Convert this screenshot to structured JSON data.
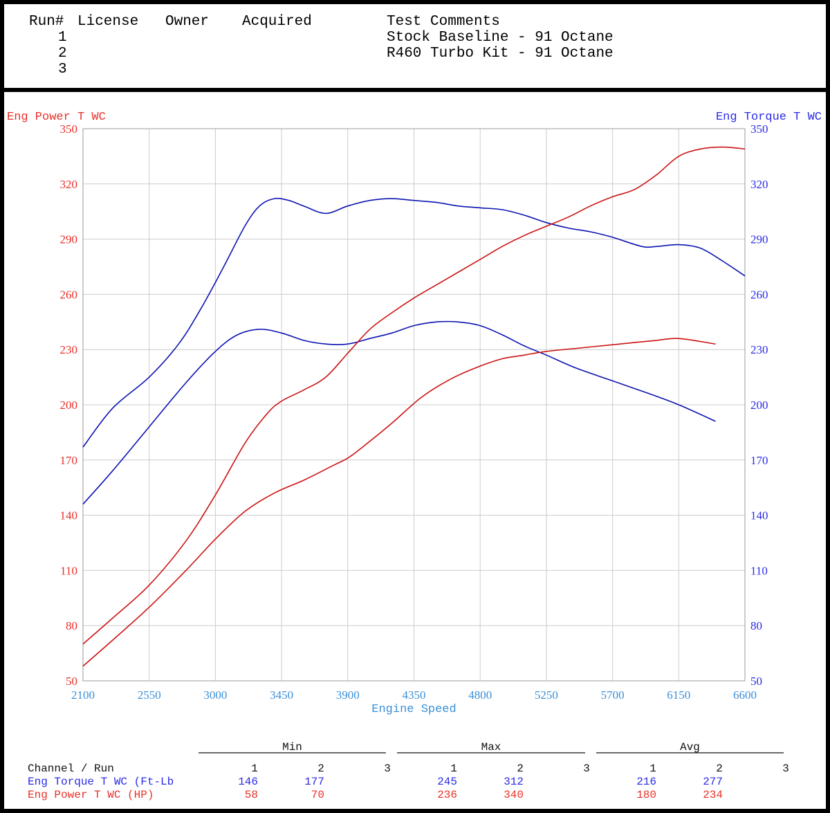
{
  "header": {
    "columns": {
      "run": "Run#",
      "license": "License",
      "owner": "Owner",
      "acquired": "Acquired",
      "comments": "Test Comments"
    },
    "runs": [
      {
        "num": "1",
        "comment": "Stock Baseline - 91 Octane"
      },
      {
        "num": "2",
        "comment": "R460 Turbo Kit - 91 Octane"
      },
      {
        "num": "3",
        "comment": ""
      }
    ]
  },
  "colors": {
    "power": "#e8302a",
    "torque": "#2a2ae8",
    "power_line": "#cc1111",
    "torque_line": "#0a12b0",
    "xaxis": "#3a8fd8",
    "grid": "#cccccc"
  },
  "chart_data": {
    "type": "line",
    "xlabel": "Engine Speed",
    "ylabel_left": "Eng Power T WC",
    "ylabel_right": "Eng Torque T WC",
    "xlim": [
      2100,
      6600
    ],
    "ylim": [
      50,
      350
    ],
    "x_ticks": [
      2100,
      2550,
      3000,
      3450,
      3900,
      4350,
      4800,
      5250,
      5700,
      6150,
      6600
    ],
    "y_ticks": [
      50,
      80,
      110,
      140,
      170,
      200,
      230,
      260,
      290,
      320,
      350
    ],
    "grid": true,
    "series": [
      {
        "name": "Eng Torque T WC (Ft-Lb)",
        "run": 1,
        "axis": "right",
        "color": "#0a12b0",
        "x": [
          2100,
          2300,
          2550,
          2800,
          3000,
          3150,
          3300,
          3450,
          3600,
          3750,
          3900,
          4050,
          4200,
          4350,
          4500,
          4650,
          4800,
          4950,
          5100,
          5250,
          5450,
          5700,
          5950,
          6150,
          6400
        ],
        "y": [
          146,
          164,
          188,
          212,
          229,
          238,
          241,
          239,
          235,
          233,
          233,
          236,
          239,
          243,
          245,
          245,
          243,
          238,
          232,
          227,
          220,
          213,
          206,
          200,
          191
        ]
      },
      {
        "name": "Eng Torque T WC (Ft-Lb)",
        "run": 2,
        "axis": "right",
        "color": "#0a12b0",
        "x": [
          2100,
          2300,
          2550,
          2750,
          2900,
          3050,
          3200,
          3300,
          3400,
          3500,
          3600,
          3750,
          3900,
          4050,
          4200,
          4350,
          4500,
          4650,
          4800,
          4950,
          5100,
          5250,
          5400,
          5550,
          5700,
          5900,
          6000,
          6150,
          6300,
          6450,
          6600
        ],
        "y": [
          177,
          198,
          215,
          233,
          252,
          274,
          297,
          308,
          312,
          311,
          308,
          304,
          308,
          311,
          312,
          311,
          310,
          308,
          307,
          306,
          303,
          299,
          296,
          294,
          291,
          286,
          286,
          287,
          285,
          278,
          270
        ]
      },
      {
        "name": "Eng Power T WC (HP)",
        "run": 1,
        "axis": "left",
        "color": "#cc1111",
        "x": [
          2100,
          2300,
          2550,
          2800,
          3000,
          3200,
          3400,
          3600,
          3800,
          3900,
          4000,
          4200,
          4400,
          4600,
          4800,
          4950,
          5100,
          5250,
          5500,
          5750,
          6000,
          6150,
          6400
        ],
        "y": [
          58,
          72,
          90,
          110,
          127,
          142,
          152,
          159,
          167,
          171,
          177,
          190,
          204,
          214,
          221,
          225,
          227,
          229,
          231,
          233,
          235,
          236,
          233
        ]
      },
      {
        "name": "Eng Power T WC (HP)",
        "run": 2,
        "axis": "left",
        "color": "#cc1111",
        "x": [
          2100,
          2300,
          2550,
          2800,
          3000,
          3200,
          3350,
          3450,
          3600,
          3750,
          3900,
          4050,
          4200,
          4350,
          4500,
          4650,
          4800,
          4950,
          5100,
          5250,
          5400,
          5550,
          5700,
          5850,
          6000,
          6150,
          6300,
          6450,
          6600
        ],
        "y": [
          70,
          84,
          102,
          126,
          151,
          179,
          195,
          202,
          208,
          215,
          228,
          241,
          250,
          258,
          265,
          272,
          279,
          286,
          292,
          297,
          302,
          308,
          313,
          317,
          325,
          335,
          339,
          340,
          339
        ]
      }
    ],
    "summary": {
      "headers": {
        "min": "Min",
        "max": "Max",
        "avg": "Avg",
        "channel_run": "Channel / Run"
      },
      "run_numbers": [
        "1",
        "2",
        "3"
      ],
      "rows": [
        {
          "label": "Eng Torque T WC (Ft-Lb",
          "color": "#2a2ae8",
          "min": [
            "146",
            "177",
            ""
          ],
          "max": [
            "245",
            "312",
            ""
          ],
          "avg": [
            "216",
            "277",
            ""
          ]
        },
        {
          "label": "Eng Power T WC (HP)",
          "color": "#e8302a",
          "min": [
            "58",
            "70",
            ""
          ],
          "max": [
            "236",
            "340",
            ""
          ],
          "avg": [
            "180",
            "234",
            ""
          ]
        }
      ]
    }
  }
}
